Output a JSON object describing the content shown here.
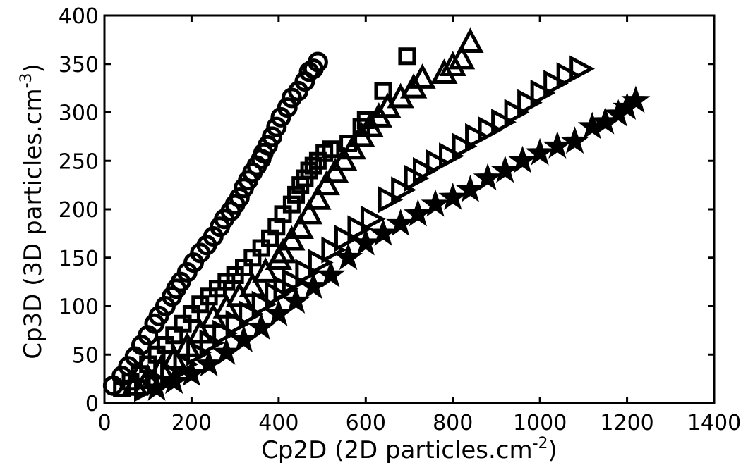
{
  "chart_data": {
    "type": "scatter",
    "title": "",
    "xlabel_main": "Cp2D (2D particles.cm",
    "xlabel_sup": "-2",
    "xlabel_end": ")",
    "ylabel_main": "Cp3D (3D particles.cm",
    "ylabel_sup": "-3",
    "ylabel_end": ")",
    "xlim": [
      0,
      1400
    ],
    "ylim": [
      0,
      400
    ],
    "xticks": [
      "0",
      "200",
      "400",
      "600",
      "800",
      "1000",
      "1200",
      "1400"
    ],
    "yticks": [
      "0",
      "50",
      "100",
      "150",
      "200",
      "250",
      "300",
      "350",
      "400"
    ],
    "grid": false,
    "legend": "none",
    "series": [
      {
        "marker": "circle",
        "points": [
          [
            20,
            18
          ],
          [
            40,
            28
          ],
          [
            55,
            38
          ],
          [
            70,
            48
          ],
          [
            85,
            60
          ],
          [
            100,
            70
          ],
          [
            115,
            82
          ],
          [
            125,
            90
          ],
          [
            140,
            100
          ],
          [
            155,
            110
          ],
          [
            165,
            118
          ],
          [
            175,
            125
          ],
          [
            190,
            135
          ],
          [
            205,
            145
          ],
          [
            220,
            155
          ],
          [
            235,
            163
          ],
          [
            250,
            172
          ],
          [
            265,
            182
          ],
          [
            275,
            190
          ],
          [
            290,
            198
          ],
          [
            300,
            205
          ],
          [
            310,
            212
          ],
          [
            320,
            222
          ],
          [
            330,
            230
          ],
          [
            340,
            238
          ],
          [
            350,
            245
          ],
          [
            360,
            252
          ],
          [
            365,
            258
          ],
          [
            375,
            266
          ],
          [
            385,
            275
          ],
          [
            395,
            285
          ],
          [
            405,
            295
          ],
          [
            420,
            305
          ],
          [
            430,
            315
          ],
          [
            445,
            322
          ],
          [
            460,
            332
          ],
          [
            470,
            342
          ],
          [
            480,
            345
          ],
          [
            490,
            352
          ]
        ]
      },
      {
        "marker": "square",
        "points": [
          [
            40,
            15
          ],
          [
            60,
            22
          ],
          [
            80,
            30
          ],
          [
            100,
            40
          ],
          [
            120,
            50
          ],
          [
            140,
            60
          ],
          [
            160,
            70
          ],
          [
            180,
            82
          ],
          [
            200,
            92
          ],
          [
            220,
            102
          ],
          [
            240,
            110
          ],
          [
            260,
            118
          ],
          [
            280,
            125
          ],
          [
            300,
            132
          ],
          [
            320,
            140
          ],
          [
            340,
            150
          ],
          [
            360,
            160
          ],
          [
            380,
            170
          ],
          [
            395,
            182
          ],
          [
            410,
            195
          ],
          [
            430,
            205
          ],
          [
            440,
            215
          ],
          [
            450,
            225
          ],
          [
            460,
            232
          ],
          [
            470,
            240
          ],
          [
            480,
            245
          ],
          [
            490,
            250
          ],
          [
            505,
            258
          ],
          [
            520,
            262
          ],
          [
            560,
            268
          ],
          [
            590,
            285
          ],
          [
            600,
            292
          ],
          [
            640,
            322
          ],
          [
            695,
            358
          ]
        ]
      },
      {
        "marker": "triangle",
        "points": [
          [
            70,
            18
          ],
          [
            100,
            25
          ],
          [
            130,
            35
          ],
          [
            160,
            45
          ],
          [
            190,
            58
          ],
          [
            220,
            72
          ],
          [
            250,
            88
          ],
          [
            280,
            98
          ],
          [
            310,
            110
          ],
          [
            340,
            120
          ],
          [
            370,
            135
          ],
          [
            400,
            148
          ],
          [
            410,
            155
          ],
          [
            430,
            168
          ],
          [
            450,
            180
          ],
          [
            470,
            195
          ],
          [
            490,
            210
          ],
          [
            510,
            225
          ],
          [
            530,
            238
          ],
          [
            550,
            250
          ],
          [
            570,
            262
          ],
          [
            590,
            275
          ],
          [
            610,
            285
          ],
          [
            630,
            295
          ],
          [
            650,
            305
          ],
          [
            680,
            315
          ],
          [
            710,
            325
          ],
          [
            730,
            335
          ],
          [
            780,
            340
          ],
          [
            800,
            348
          ],
          [
            820,
            355
          ],
          [
            840,
            372
          ]
        ]
      },
      {
        "marker": "triangle-right",
        "points": [
          [
            90,
            15
          ],
          [
            120,
            22
          ],
          [
            150,
            30
          ],
          [
            180,
            40
          ],
          [
            210,
            52
          ],
          [
            240,
            62
          ],
          [
            270,
            72
          ],
          [
            300,
            82
          ],
          [
            330,
            92
          ],
          [
            360,
            102
          ],
          [
            390,
            112
          ],
          [
            410,
            118
          ],
          [
            430,
            125
          ],
          [
            460,
            135
          ],
          [
            490,
            145
          ],
          [
            520,
            158
          ],
          [
            550,
            170
          ],
          [
            580,
            180
          ],
          [
            610,
            190
          ],
          [
            650,
            210
          ],
          [
            680,
            220
          ],
          [
            710,
            232
          ],
          [
            730,
            240
          ],
          [
            760,
            248
          ],
          [
            790,
            255
          ],
          [
            820,
            265
          ],
          [
            850,
            275
          ],
          [
            880,
            282
          ],
          [
            910,
            290
          ],
          [
            940,
            300
          ],
          [
            970,
            310
          ],
          [
            1000,
            320
          ],
          [
            1030,
            330
          ],
          [
            1060,
            338
          ],
          [
            1090,
            345
          ]
        ]
      },
      {
        "marker": "star",
        "points": [
          [
            120,
            15
          ],
          [
            160,
            22
          ],
          [
            200,
            30
          ],
          [
            240,
            40
          ],
          [
            280,
            52
          ],
          [
            320,
            65
          ],
          [
            360,
            78
          ],
          [
            400,
            92
          ],
          [
            440,
            105
          ],
          [
            480,
            120
          ],
          [
            520,
            132
          ],
          [
            560,
            150
          ],
          [
            600,
            165
          ],
          [
            640,
            175
          ],
          [
            680,
            185
          ],
          [
            720,
            195
          ],
          [
            760,
            205
          ],
          [
            800,
            212
          ],
          [
            840,
            220
          ],
          [
            880,
            232
          ],
          [
            920,
            240
          ],
          [
            960,
            250
          ],
          [
            1000,
            258
          ],
          [
            1040,
            265
          ],
          [
            1080,
            270
          ],
          [
            1120,
            285
          ],
          [
            1150,
            290
          ],
          [
            1180,
            298
          ],
          [
            1200,
            305
          ],
          [
            1220,
            312
          ]
        ]
      }
    ]
  }
}
